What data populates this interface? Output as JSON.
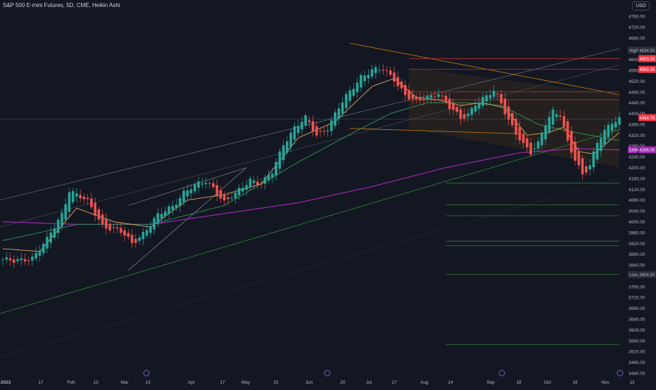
{
  "header": {
    "symbol_line": "S&P 500 E-mini Futures, 5D, CME, Heikin Ashi",
    "currency": "USD"
  },
  "colors": {
    "background": "#131722",
    "up": "#26a69a",
    "down": "#ef5350",
    "axis_text": "#b2b5be",
    "ema_fast": "#e0a85c",
    "ema_mid": "#2e8b57",
    "ema_slow": "#9c27b0",
    "channel": "#ff9800"
  },
  "chart_data": {
    "type": "candlestick",
    "chart_style": "Heikin Ashi",
    "y_axis": {
      "labels": [
        "4760.00",
        "4720.00",
        "4680.00",
        "4640.00",
        "4600.00",
        "4560.00",
        "4520.00",
        "4480.00",
        "4440.00",
        "4400.00",
        "4360.00",
        "4320.00",
        "4280.00",
        "4240.00",
        "4200.00",
        "4160.00",
        "4120.00",
        "4080.00",
        "4040.00",
        "4000.00",
        "3960.00",
        "3920.00",
        "3880.00",
        "3840.00",
        "3800.00",
        "3760.00",
        "3720.00",
        "3680.00",
        "3640.00",
        "3600.00",
        "3560.00",
        "3520.00",
        "3480.00",
        "3440.00"
      ],
      "ylim": [
        3420,
        4800
      ]
    },
    "x_axis": {
      "labels": [
        "2023",
        "17",
        "Feb",
        "13",
        "Mar",
        "13",
        "Apr",
        "17",
        "May",
        "15",
        "Jun",
        "20",
        "Jul",
        "17",
        "Aug",
        "14",
        "Sep",
        "18",
        "Oct",
        "16",
        "Nov",
        "13"
      ]
    },
    "price_badges": [
      {
        "label": "High",
        "value": "4634.50",
        "style": "high"
      },
      {
        "label": "",
        "value": "4603.25",
        "style": "red"
      },
      {
        "label": "",
        "value": "4563.25",
        "style": "red"
      },
      {
        "label": "",
        "value": "4384.75",
        "style": "red"
      },
      {
        "label": "EMA",
        "value": "4266.00",
        "style": "purple"
      },
      {
        "label": "Low",
        "value": "3804.50",
        "style": "low"
      }
    ],
    "anchors": [
      [
        0,
        3860
      ],
      [
        3,
        3850
      ],
      [
        8,
        3870
      ],
      [
        12,
        3930
      ],
      [
        16,
        4030
      ],
      [
        18,
        4120
      ],
      [
        20,
        4100
      ],
      [
        23,
        4070
      ],
      [
        27,
        3990
      ],
      [
        32,
        3960
      ],
      [
        35,
        3920
      ],
      [
        38,
        3960
      ],
      [
        42,
        4020
      ],
      [
        46,
        4060
      ],
      [
        49,
        4110
      ],
      [
        52,
        4130
      ],
      [
        55,
        4150
      ],
      [
        57,
        4130
      ],
      [
        60,
        4070
      ],
      [
        63,
        4100
      ],
      [
        67,
        4160
      ],
      [
        70,
        4140
      ],
      [
        73,
        4180
      ],
      [
        76,
        4290
      ],
      [
        79,
        4350
      ],
      [
        82,
        4380
      ],
      [
        85,
        4320
      ],
      [
        88,
        4350
      ],
      [
        91,
        4420
      ],
      [
        94,
        4480
      ],
      [
        97,
        4540
      ],
      [
        100,
        4560
      ],
      [
        103,
        4560
      ],
      [
        106,
        4530
      ],
      [
        109,
        4470
      ],
      [
        112,
        4440
      ],
      [
        115,
        4460
      ],
      [
        118,
        4480
      ],
      [
        121,
        4420
      ],
      [
        124,
        4380
      ],
      [
        126,
        4400
      ],
      [
        128,
        4440
      ],
      [
        131,
        4460
      ],
      [
        133,
        4480
      ],
      [
        135,
        4440
      ],
      [
        137,
        4380
      ],
      [
        139,
        4330
      ],
      [
        141,
        4280
      ],
      [
        143,
        4250
      ],
      [
        145,
        4290
      ],
      [
        147,
        4370
      ],
      [
        149,
        4410
      ],
      [
        151,
        4390
      ],
      [
        153,
        4290
      ],
      [
        155,
        4230
      ],
      [
        157,
        4180
      ],
      [
        159,
        4210
      ],
      [
        161,
        4290
      ],
      [
        163,
        4330
      ],
      [
        165,
        4370
      ],
      [
        167,
        4385
      ]
    ],
    "ema_fast_anchors": [
      [
        0,
        3900
      ],
      [
        10,
        3890
      ],
      [
        20,
        4050
      ],
      [
        30,
        4000
      ],
      [
        40,
        3980
      ],
      [
        50,
        4080
      ],
      [
        60,
        4100
      ],
      [
        70,
        4140
      ],
      [
        80,
        4310
      ],
      [
        90,
        4370
      ],
      [
        100,
        4500
      ],
      [
        106,
        4530
      ],
      [
        112,
        4460
      ],
      [
        118,
        4450
      ],
      [
        124,
        4430
      ],
      [
        130,
        4440
      ],
      [
        136,
        4420
      ],
      [
        142,
        4320
      ],
      [
        148,
        4330
      ],
      [
        152,
        4350
      ],
      [
        156,
        4260
      ],
      [
        160,
        4250
      ],
      [
        167,
        4330
      ]
    ],
    "ema_mid_anchors": [
      [
        0,
        3930
      ],
      [
        20,
        3990
      ],
      [
        40,
        3990
      ],
      [
        60,
        4060
      ],
      [
        80,
        4220
      ],
      [
        95,
        4330
      ],
      [
        105,
        4400
      ],
      [
        115,
        4440
      ],
      [
        125,
        4440
      ],
      [
        135,
        4430
      ],
      [
        145,
        4360
      ],
      [
        155,
        4330
      ],
      [
        167,
        4300
      ]
    ],
    "ema_slow_anchors": [
      [
        0,
        4000
      ],
      [
        20,
        3990
      ],
      [
        40,
        3990
      ],
      [
        60,
        4030
      ],
      [
        80,
        4070
      ],
      [
        100,
        4130
      ],
      [
        120,
        4200
      ],
      [
        140,
        4255
      ],
      [
        155,
        4270
      ],
      [
        167,
        4266
      ]
    ],
    "horizontal_levels": [
      {
        "price": 4603.25,
        "color": "red"
      },
      {
        "price": 4563.25,
        "color": "red"
      },
      {
        "price": 4480,
        "color": "red"
      },
      {
        "price": 4451,
        "color": "red"
      },
      {
        "price": 4143,
        "color": "green"
      },
      {
        "price": 4062,
        "color": "green"
      },
      {
        "price": 4022,
        "color": "green"
      },
      {
        "price": 3928,
        "color": "green"
      },
      {
        "price": 3911,
        "color": "green"
      },
      {
        "price": 3804.5,
        "color": "green"
      },
      {
        "price": 3545,
        "color": "green"
      }
    ]
  }
}
